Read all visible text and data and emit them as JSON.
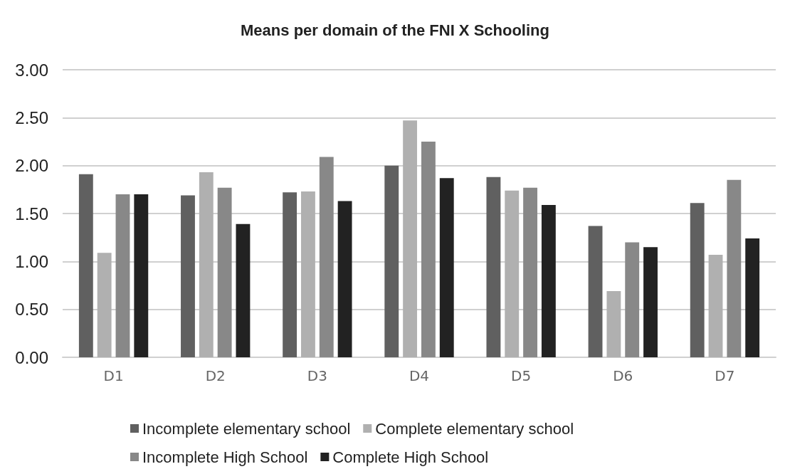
{
  "chart_data": {
    "type": "bar",
    "title": "Means per domain of the FNI X Schooling",
    "categories": [
      "D1",
      "D2",
      "D3",
      "D4",
      "D5",
      "D6",
      "D7"
    ],
    "series": [
      {
        "name": "Incomplete elementary school",
        "color": "#606060",
        "values": [
          1.91,
          1.69,
          1.72,
          2.0,
          1.88,
          1.37,
          1.61
        ]
      },
      {
        "name": "Complete elementary school",
        "color": "#b0b0b0",
        "values": [
          1.09,
          1.93,
          1.73,
          2.47,
          1.74,
          0.69,
          1.07
        ]
      },
      {
        "name": "Incomplete High School",
        "color": "#888888",
        "values": [
          1.7,
          1.77,
          2.09,
          2.25,
          1.77,
          1.2,
          1.85
        ]
      },
      {
        "name": "Complete High School",
        "color": "#222222",
        "values": [
          1.7,
          1.39,
          1.63,
          1.87,
          1.59,
          1.15,
          1.24
        ]
      }
    ],
    "ylim": [
      0,
      3
    ],
    "yticks": [
      {
        "value": 0,
        "label": "0.00"
      },
      {
        "value": 0.5,
        "label": "0.50"
      },
      {
        "value": 1,
        "label": "1.00"
      },
      {
        "value": 1.5,
        "label": "1.50"
      },
      {
        "value": 2,
        "label": "2.00"
      },
      {
        "value": 2.5,
        "label": "2.50"
      },
      {
        "value": 3,
        "label": "3.00"
      }
    ],
    "grid": "y",
    "legend": "bottom"
  }
}
